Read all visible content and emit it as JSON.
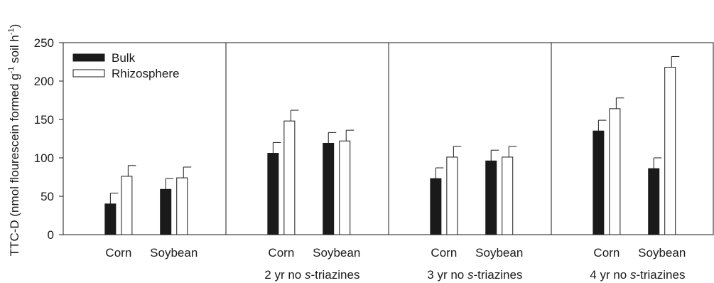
{
  "chart_data": {
    "type": "bar",
    "ylabel": "TTC-D (nmol flourescein formed g",
    "ylabel_sup1": "-1",
    "ylabel_mid": " soil h",
    "ylabel_sup2": "-1",
    "ylabel_end": ")",
    "ylim": [
      0,
      250
    ],
    "yticks": [
      0,
      50,
      100,
      150,
      200,
      250
    ],
    "legend": {
      "position": "top-left",
      "entries": [
        {
          "name": "Bulk",
          "color": "#1a1a1a"
        },
        {
          "name": "Rhizosphere",
          "color": "#ffffff"
        }
      ]
    },
    "panels": [
      {
        "label": "",
        "categories": [
          "Corn",
          "Soybean"
        ],
        "series": [
          {
            "name": "Bulk",
            "values": [
              40,
              59
            ],
            "errors": [
              14,
              14
            ]
          },
          {
            "name": "Rhizosphere",
            "values": [
              76,
              74
            ],
            "errors": [
              14,
              14
            ]
          }
        ]
      },
      {
        "label_pre": "2 yr no ",
        "label_it": "s",
        "label_post": "-triazines",
        "categories": [
          "Corn",
          "Soybean"
        ],
        "series": [
          {
            "name": "Bulk",
            "values": [
              106,
              119
            ],
            "errors": [
              14,
              14
            ]
          },
          {
            "name": "Rhizosphere",
            "values": [
              148,
              122
            ],
            "errors": [
              14,
              14
            ]
          }
        ]
      },
      {
        "label_pre": "3 yr no ",
        "label_it": "s",
        "label_post": "-triazines",
        "categories": [
          "Corn",
          "Soybean"
        ],
        "series": [
          {
            "name": "Bulk",
            "values": [
              73,
              96
            ],
            "errors": [
              14,
              14
            ]
          },
          {
            "name": "Rhizosphere",
            "values": [
              101,
              101
            ],
            "errors": [
              14,
              14
            ]
          }
        ]
      },
      {
        "label_pre": "4 yr no ",
        "label_it": "s",
        "label_post": "-triazines",
        "categories": [
          "Corn",
          "Soybean"
        ],
        "series": [
          {
            "name": "Bulk",
            "values": [
              135,
              86
            ],
            "errors": [
              14,
              14
            ]
          },
          {
            "name": "Rhizosphere",
            "values": [
              164,
              218
            ],
            "errors": [
              14,
              14
            ]
          }
        ]
      }
    ]
  }
}
